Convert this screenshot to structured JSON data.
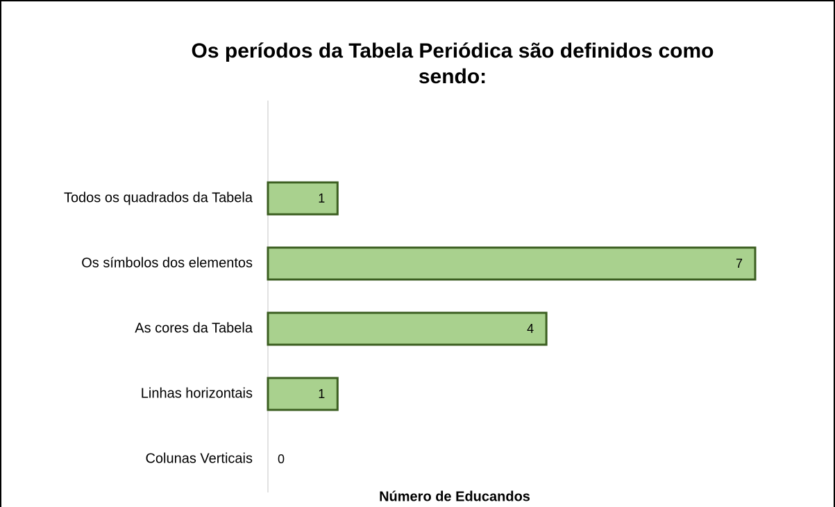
{
  "chart_data": {
    "type": "bar",
    "orientation": "horizontal",
    "title": "Os períodos da Tabela Periódica são definidos como sendo:",
    "xlabel": "Número de Educandos",
    "categories": [
      "Todos os quadrados da Tabela",
      "Os símbolos dos elementos",
      "As cores da Tabela",
      "Linhas horizontais",
      "Colunas Verticais"
    ],
    "values": [
      1,
      7,
      4,
      1,
      0
    ],
    "color": "#a9d18e",
    "edgecolor": "#3b5e20",
    "xlim": [
      0,
      7
    ]
  }
}
